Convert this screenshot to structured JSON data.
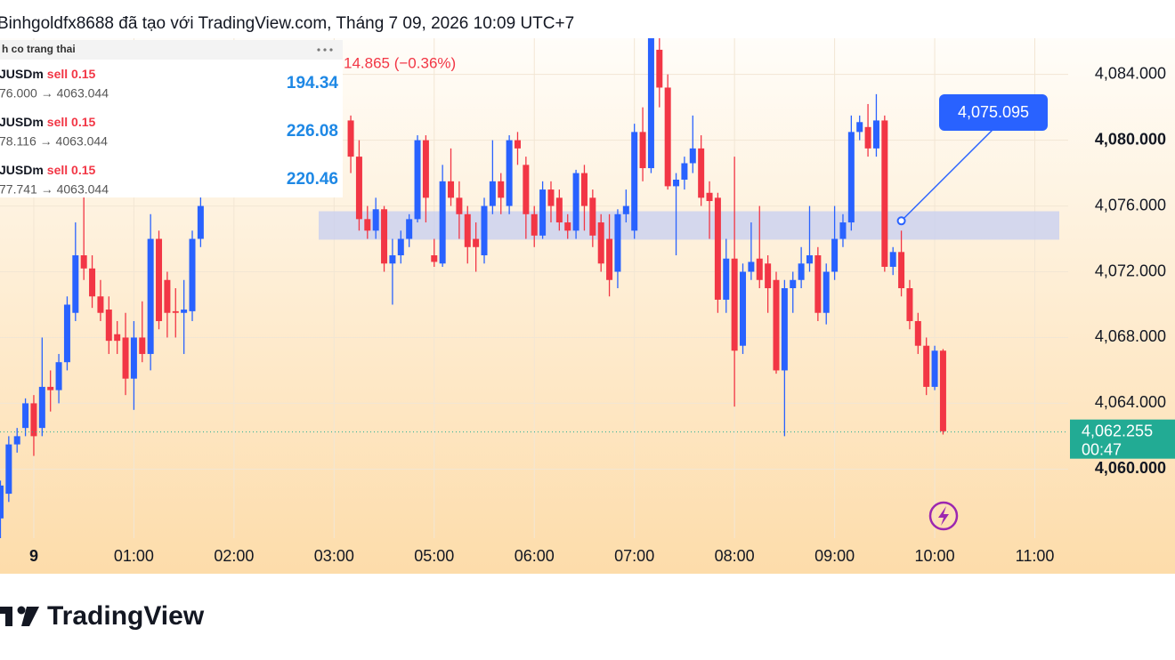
{
  "chart_data": {
    "type": "candlestick",
    "title": "Binhgoldfx8688 đã tạo với TradingView.com, Tháng 7 09, 2026 10:09 UTC+7",
    "price_change": "14.865 (−0.36%)",
    "up_color": "#2962ff",
    "down_color": "#f23645",
    "grid": true,
    "xlim": [
      -4.05,
      124
    ],
    "xticks": [
      {
        "value": 0,
        "label": "9"
      },
      {
        "value": 12,
        "label": "01:00"
      },
      {
        "value": 24,
        "label": "02:00"
      },
      {
        "value": 36,
        "label": "03:00"
      },
      {
        "value": 48,
        "label": "05:00"
      },
      {
        "value": 60,
        "label": "06:00"
      },
      {
        "value": 72,
        "label": "07:00"
      },
      {
        "value": 84,
        "label": "08:00"
      },
      {
        "value": 96,
        "label": "09:00"
      },
      {
        "value": 108,
        "label": "10:00"
      },
      {
        "value": 120,
        "label": "11:00"
      }
    ],
    "ylim": [
      4055.8,
      4086.2
    ],
    "yticks": [
      {
        "value": 4060,
        "label": "4,060.000"
      },
      {
        "value": 4064,
        "label": "4,064.000"
      },
      {
        "value": 4068,
        "label": "4,068.000"
      },
      {
        "value": 4072,
        "label": "4,072.000"
      },
      {
        "value": 4076,
        "label": "4,076.000"
      },
      {
        "value": 4080,
        "label": "4,080.000"
      },
      {
        "value": 4084,
        "label": "4,084.000"
      }
    ],
    "x": [
      -4,
      -3,
      -2,
      -1,
      0,
      1,
      2,
      3,
      4,
      5,
      6,
      7,
      8,
      9,
      10,
      11,
      12,
      13,
      14,
      15,
      16,
      17,
      18,
      19,
      20,
      38,
      39,
      40,
      41,
      42,
      43,
      44,
      45,
      46,
      47,
      48,
      49,
      50,
      51,
      52,
      53,
      54,
      55,
      56,
      57,
      58,
      59,
      60,
      61,
      62,
      63,
      64,
      65,
      66,
      67,
      68,
      69,
      70,
      71,
      72,
      73,
      74,
      75,
      76,
      77,
      78,
      79,
      80,
      81,
      82,
      83,
      84,
      85,
      86,
      87,
      88,
      89,
      90,
      91,
      92,
      93,
      94,
      95,
      96,
      97,
      98,
      99,
      100,
      101,
      102,
      103,
      104,
      105,
      106,
      107,
      108,
      109
    ],
    "ohlc": [
      [
        4057,
        4059.3,
        4055.8,
        4059
      ],
      [
        4058.5,
        4062,
        4058,
        4061.5
      ],
      [
        4061.5,
        4062.5,
        4061,
        4062
      ],
      [
        4062.5,
        4064.3,
        4062,
        4064
      ],
      [
        4064,
        4064.5,
        4060.8,
        4062
      ],
      [
        4062.5,
        4068,
        4062,
        4065
      ],
      [
        4065,
        4066,
        4063.5,
        4064.8
      ],
      [
        4064.8,
        4067,
        4064,
        4066.5
      ],
      [
        4066.5,
        4070.5,
        4066,
        4070
      ],
      [
        4069.5,
        4075,
        4069,
        4073
      ],
      [
        4073,
        4077,
        4071.5,
        4072.2
      ],
      [
        4072.2,
        4073,
        4069.8,
        4070.5
      ],
      [
        4070.5,
        4071.5,
        4069,
        4069.5
      ],
      [
        4069.7,
        4070.5,
        4067,
        4067.8
      ],
      [
        4068.2,
        4069,
        4067,
        4067.8
      ],
      [
        4068,
        4069.5,
        4064.5,
        4065.5
      ],
      [
        4065.5,
        4069,
        4063.6,
        4068
      ],
      [
        4068,
        4070.2,
        4066.5,
        4067
      ],
      [
        4067,
        4075.5,
        4066,
        4074
      ],
      [
        4074,
        4074.5,
        4068.5,
        4069
      ],
      [
        4071.5,
        4072,
        4068,
        4069.5
      ],
      [
        4069.6,
        4071,
        4068,
        4069.5
      ],
      [
        4069.5,
        4071.5,
        4067,
        4069.7
      ],
      [
        4069.6,
        4074.5,
        4069,
        4074
      ],
      [
        4074,
        4077,
        4073.5,
        4076
      ],
      [
        4081.2,
        4081.5,
        4078,
        4079
      ],
      [
        4079,
        4080,
        4074.5,
        4075.2
      ],
      [
        4075.2,
        4076,
        4074,
        4074.5
      ],
      [
        4074.5,
        4076.5,
        4074,
        4075.8
      ],
      [
        4075.8,
        4076,
        4072,
        4072.5
      ],
      [
        4072.5,
        4074,
        4070,
        4073
      ],
      [
        4073,
        4074.5,
        4072.5,
        4074
      ],
      [
        4074,
        4075.5,
        4073.5,
        4075.2
      ],
      [
        4075.2,
        4080.3,
        4075,
        4080
      ],
      [
        4080,
        4080.3,
        4075,
        4076.5
      ],
      [
        4073,
        4074,
        4072.3,
        4072.6
      ],
      [
        4072.5,
        4078.5,
        4072.3,
        4077.5
      ],
      [
        4077.5,
        4079.5,
        4076,
        4076.5
      ],
      [
        4076.5,
        4077.5,
        4074,
        4075.5
      ],
      [
        4075.5,
        4076,
        4072.5,
        4073.5
      ],
      [
        4074,
        4075,
        4072,
        4073.5
      ],
      [
        4073,
        4076.5,
        4072.5,
        4076
      ],
      [
        4076,
        4080,
        4075.5,
        4077.5
      ],
      [
        4077.5,
        4078,
        4075.5,
        4076.5
      ],
      [
        4076,
        4080.3,
        4075.5,
        4080
      ],
      [
        4080,
        4080.5,
        4078.5,
        4079.5
      ],
      [
        4078.5,
        4079,
        4074,
        4075.5
      ],
      [
        4075.5,
        4076,
        4073.5,
        4074.2
      ],
      [
        4074.2,
        4077.5,
        4074,
        4077
      ],
      [
        4077,
        4077.5,
        4075,
        4076
      ],
      [
        4076.5,
        4077,
        4074.5,
        4075
      ],
      [
        4075,
        4075.5,
        4074,
        4074.5
      ],
      [
        4074.5,
        4078.2,
        4074,
        4078
      ],
      [
        4078,
        4078.5,
        4074.5,
        4076
      ],
      [
        4076.5,
        4077,
        4073.5,
        4074.2
      ],
      [
        4075,
        4075.5,
        4072,
        4072.5
      ],
      [
        4074,
        4075.5,
        4070.5,
        4071.5
      ],
      [
        4072,
        4075.8,
        4071,
        4075.5
      ],
      [
        4075.5,
        4077,
        4075,
        4076
      ],
      [
        4074.5,
        4081,
        4074,
        4080.5
      ],
      [
        4080.5,
        4082,
        4077.5,
        4078.3
      ],
      [
        4078.3,
        4086.2,
        4078,
        4086.2
      ],
      [
        4085.5,
        4086.2,
        4082,
        4083.2
      ],
      [
        4083.2,
        4084,
        4077,
        4077.2
      ],
      [
        4077.2,
        4078,
        4073,
        4077.6
      ],
      [
        4077.6,
        4079,
        4077,
        4078.6
      ],
      [
        4078.6,
        4081.5,
        4078,
        4079.5
      ],
      [
        4079.5,
        4080.3,
        4076,
        4076.5
      ],
      [
        4076.8,
        4077.5,
        4074,
        4076.3
      ],
      [
        4076.5,
        4076.8,
        4069.5,
        4070.3
      ],
      [
        4070.3,
        4074,
        4069.5,
        4072.8
      ],
      [
        4072.8,
        4079,
        4063.8,
        4067.2
      ],
      [
        4067.5,
        4072.5,
        4067,
        4072
      ],
      [
        4072,
        4075,
        4071.5,
        4072.6
      ],
      [
        4072.8,
        4076,
        4071,
        4071.5
      ],
      [
        4072.5,
        4073,
        4069.5,
        4071
      ],
      [
        4071.5,
        4072,
        4065.8,
        4066
      ],
      [
        4066,
        4071.5,
        4062,
        4071
      ],
      [
        4071,
        4072,
        4069.5,
        4071.5
      ],
      [
        4071.5,
        4073.5,
        4071,
        4072.5
      ],
      [
        4072.5,
        4076,
        4072,
        4073
      ],
      [
        4073,
        4073.5,
        4069,
        4069.5
      ],
      [
        4069.5,
        4072.5,
        4068.8,
        4072
      ],
      [
        4072,
        4076,
        4071.5,
        4074
      ],
      [
        4074,
        4075.5,
        4073.5,
        4075
      ],
      [
        4075,
        4081.5,
        4074.5,
        4080.5
      ],
      [
        4080.5,
        4081.5,
        4080,
        4081.1
      ],
      [
        4080.8,
        4082.2,
        4079,
        4079.5
      ],
      [
        4079.5,
        4082.8,
        4079,
        4081.2
      ],
      [
        4081.2,
        4081.5,
        4072,
        4072.3
      ],
      [
        4072.3,
        4073.5,
        4071.8,
        4073.2
      ],
      [
        4073.2,
        4074.5,
        4070.5,
        4071
      ],
      [
        4071,
        4071.5,
        4068.5,
        4069
      ],
      [
        4069,
        4069.5,
        4067,
        4067.5
      ],
      [
        4067.5,
        4068,
        4064.5,
        4065
      ],
      [
        4065,
        4067.5,
        4064.8,
        4067.2
      ],
      [
        4067.2,
        4067.3,
        4062.1,
        4062.3
      ]
    ],
    "zone": [
      4073.95,
      4075.68
    ],
    "callout": {
      "x": 104,
      "value": 4075.095,
      "label": "4,075.095"
    },
    "last_price": {
      "value": 4062.255,
      "label": "4,062.255"
    },
    "countdown": "00:47"
  },
  "panel": {
    "title": "h co trang thai",
    "rows": [
      {
        "symbol": "JUSDm",
        "side": "sell 0.15",
        "prices": "76.000 → 4063.044",
        "pnl": "194.34"
      },
      {
        "symbol": "JUSDm",
        "side": "sell 0.15",
        "prices": "78.116 → 4063.044",
        "pnl": "226.08"
      },
      {
        "symbol": "JUSDm",
        "side": "sell 0.15",
        "prices": "77.741 → 4063.044",
        "pnl": "220.46"
      }
    ]
  },
  "footer": {
    "brand": "TradingView"
  }
}
